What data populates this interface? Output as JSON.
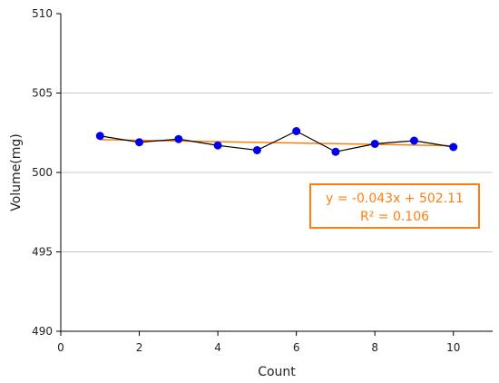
{
  "chart_data": {
    "type": "scatter",
    "xlabel": "Count",
    "ylabel": "Volume(mg)",
    "xlim": [
      0,
      11
    ],
    "ylim": [
      490,
      510
    ],
    "x_ticks": [
      "0",
      "2",
      "4",
      "6",
      "8",
      "10"
    ],
    "y_ticks": [
      "490",
      "495",
      "500",
      "505",
      "510"
    ],
    "grid": "horizontal",
    "series": [
      {
        "color": "#0000ee",
        "line_color": "#000000",
        "marker": "circle",
        "x": [
          1,
          2,
          3,
          4,
          5,
          6,
          7,
          8,
          9,
          10
        ],
        "y": [
          502.3,
          501.9,
          502.1,
          501.7,
          501.4,
          502.6,
          501.3,
          501.8,
          502.0,
          501.6
        ]
      }
    ],
    "trendline": {
      "color": "#ff7f0e",
      "slope": -0.043,
      "intercept": 502.11,
      "x_range": [
        1,
        10
      ]
    },
    "annotation": {
      "line1": "y = -0.043x + 502.11",
      "line2": "R² = 0.106",
      "color": "#ff7f0e",
      "placement": "right-middle"
    }
  }
}
